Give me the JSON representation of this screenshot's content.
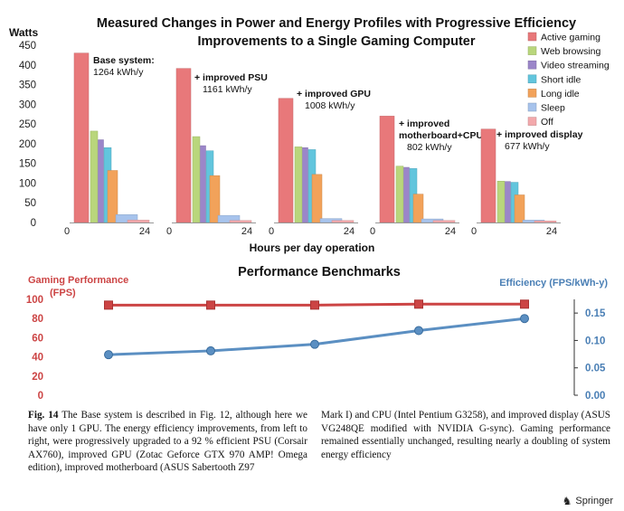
{
  "chart_data": [
    {
      "type": "bar",
      "title_lines": [
        "Measured Changes in Power and Energy Profiles with Progressive Efficiency",
        "Improvements to a Single Gaming Computer"
      ],
      "ylabel": "Watts",
      "xlabel": "Hours per day operation",
      "ylim": [
        0,
        450
      ],
      "yticks": [
        0,
        50,
        100,
        150,
        200,
        250,
        300,
        350,
        400,
        450
      ],
      "group_axis_ticks": [
        "0",
        "24"
      ],
      "legend": [
        {
          "name": "Active gaming",
          "color": "#e8787a"
        },
        {
          "name": "Web browsing",
          "color": "#b9d67c"
        },
        {
          "name": "Video streaming",
          "color": "#9b86c9"
        },
        {
          "name": "Short idle",
          "color": "#62c5dd"
        },
        {
          "name": "Long idle",
          "color": "#f2a25a"
        },
        {
          "name": "Sleep",
          "color": "#a7c3ec"
        },
        {
          "name": "Off",
          "color": "#f3a9ac"
        }
      ],
      "groups": [
        {
          "label": "Base system:",
          "energy": "1264 kWh/y",
          "values": [
            430,
            232,
            210,
            190,
            132,
            20,
            6
          ]
        },
        {
          "label": "+ improved PSU",
          "energy": "1161 kWh/y",
          "values": [
            391,
            218,
            195,
            182,
            119,
            18,
            5
          ]
        },
        {
          "label": "+ improved GPU",
          "energy": "1008 kWh/y",
          "values": [
            315,
            192,
            190,
            185,
            122,
            10,
            5
          ]
        },
        {
          "label": "+ improved motherboard+CPU",
          "label_lines": [
            "+ improved",
            "motherboard+CPU"
          ],
          "energy": "802 kWh/y",
          "values": [
            270,
            143,
            140,
            137,
            72,
            9,
            5
          ]
        },
        {
          "label": "+ improved display",
          "energy": "677 kWh/y",
          "values": [
            237,
            105,
            104,
            102,
            70,
            6,
            4
          ]
        }
      ]
    },
    {
      "type": "line",
      "title": "Performance Benchmarks",
      "x": [
        1,
        2,
        3,
        4,
        5
      ],
      "left_axis": {
        "label_lines": [
          "Gaming Performance",
          "(FPS)"
        ],
        "ylim": [
          0,
          100
        ],
        "ticks": [
          "0",
          "20",
          "40",
          "60",
          "80",
          "100"
        ],
        "color": "#cc4444"
      },
      "right_axis": {
        "label": "Efficiency (FPS/kWh-y)",
        "ylim": [
          0,
          0.175
        ],
        "ticks": [
          "0.00",
          "0.05",
          "0.10",
          "0.15"
        ],
        "tick_values": [
          0,
          0.05,
          0.1,
          0.15
        ],
        "color": "#4a7fb5"
      },
      "series": [
        {
          "name": "Gaming Performance (FPS)",
          "axis": "left",
          "color": "#cc4444",
          "values": [
            94,
            94,
            94,
            95,
            95
          ]
        },
        {
          "name": "Efficiency (FPS/kWh-y)",
          "axis": "right",
          "color": "#5b8fc2",
          "values": [
            0.074,
            0.081,
            0.093,
            0.118,
            0.14
          ]
        }
      ]
    }
  ],
  "caption": {
    "label": "Fig. 14",
    "left": " The Base system is described in Fig. 12, although here we have only 1 GPU. The energy efficiency improvements, from left to right, were progressively upgraded to a 92 % efficient PSU (Corsair AX760), improved GPU (Zotac Geforce GTX 970 AMP! Omega edition), improved motherboard (ASUS Sabertooth Z97",
    "right": "Mark I) and CPU (Intel Pentium G3258), and improved display (ASUS VG248QE modified with NVIDIA G-sync). Gaming performance remained essentially unchanged, resulting nearly a doubling of system energy efficiency"
  },
  "publisher": "Springer",
  "publisher_icon": "springer-horse-icon"
}
